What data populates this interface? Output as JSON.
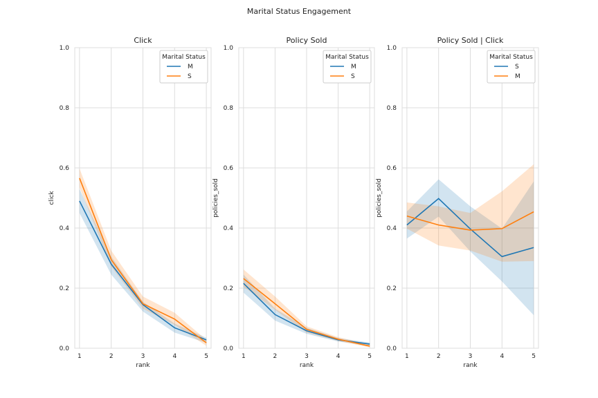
{
  "figure": {
    "title": "Marital Status Engagement"
  },
  "colors": {
    "M": "#1f77b4",
    "S": "#ff7f0e"
  },
  "chart_data": [
    {
      "type": "line",
      "title": "Click",
      "xlabel": "rank",
      "ylabel": "click",
      "x": [
        1,
        2,
        3,
        4,
        5
      ],
      "xticks": [
        "1",
        "2",
        "3",
        "4",
        "5"
      ],
      "ylim": [
        0,
        1.0
      ],
      "yticks": [
        "0.0",
        "0.2",
        "0.4",
        "0.6",
        "0.8",
        "1.0"
      ],
      "legend": {
        "title": "Marital Status",
        "placement": "top-right"
      },
      "series": [
        {
          "name": "M",
          "color_key": "M",
          "values": [
            0.49,
            0.28,
            0.145,
            0.068,
            0.028
          ],
          "ci_low": [
            0.45,
            0.245,
            0.122,
            0.052,
            0.018
          ],
          "ci_high": [
            0.53,
            0.305,
            0.155,
            0.082,
            0.035
          ]
        },
        {
          "name": "S",
          "color_key": "S",
          "values": [
            0.566,
            0.295,
            0.148,
            0.097,
            0.018
          ],
          "ci_low": [
            0.535,
            0.272,
            0.132,
            0.078,
            0.008
          ],
          "ci_high": [
            0.598,
            0.325,
            0.172,
            0.118,
            0.028
          ]
        }
      ]
    },
    {
      "type": "line",
      "title": "Policy Sold",
      "xlabel": "rank",
      "ylabel": "policies_sold",
      "x": [
        1,
        2,
        3,
        4,
        5
      ],
      "xticks": [
        "1",
        "2",
        "3",
        "4",
        "5"
      ],
      "ylim": [
        0,
        1.0
      ],
      "yticks": [
        "0.0",
        "0.2",
        "0.4",
        "0.6",
        "0.8",
        "1.0"
      ],
      "legend": {
        "title": "Marital Status",
        "placement": "top-right"
      },
      "series": [
        {
          "name": "M",
          "color_key": "M",
          "values": [
            0.216,
            0.112,
            0.058,
            0.028,
            0.014
          ],
          "ci_low": [
            0.185,
            0.092,
            0.048,
            0.022,
            0.009
          ],
          "ci_high": [
            0.245,
            0.132,
            0.068,
            0.034,
            0.019
          ]
        },
        {
          "name": "S",
          "color_key": "S",
          "values": [
            0.232,
            0.148,
            0.063,
            0.03,
            0.007
          ],
          "ci_low": [
            0.205,
            0.128,
            0.052,
            0.024,
            0.003
          ],
          "ci_high": [
            0.262,
            0.172,
            0.073,
            0.037,
            0.012
          ]
        }
      ]
    },
    {
      "type": "line",
      "title": "Policy Sold | Click",
      "xlabel": "rank",
      "ylabel": "policies_sold",
      "x": [
        1,
        2,
        3,
        4,
        5
      ],
      "xticks": [
        "1",
        "2",
        "3",
        "4",
        "5"
      ],
      "ylim": [
        0,
        1.0
      ],
      "yticks": [
        "0.0",
        "0.2",
        "0.4",
        "0.6",
        "0.8",
        "1.0"
      ],
      "legend": {
        "title": "Marital Status",
        "placement": "top-right"
      },
      "series": [
        {
          "name": "S",
          "color_key": "M",
          "values": [
            0.41,
            0.498,
            0.397,
            0.305,
            0.335
          ],
          "ci_low": [
            0.365,
            0.438,
            0.322,
            0.222,
            0.11
          ],
          "ci_high": [
            0.455,
            0.562,
            0.472,
            0.398,
            0.555
          ]
        },
        {
          "name": "M",
          "color_key": "S",
          "values": [
            0.44,
            0.41,
            0.393,
            0.398,
            0.454
          ],
          "ci_low": [
            0.398,
            0.342,
            0.325,
            0.288,
            0.29
          ],
          "ci_high": [
            0.485,
            0.472,
            0.45,
            0.522,
            0.612
          ]
        }
      ]
    }
  ]
}
